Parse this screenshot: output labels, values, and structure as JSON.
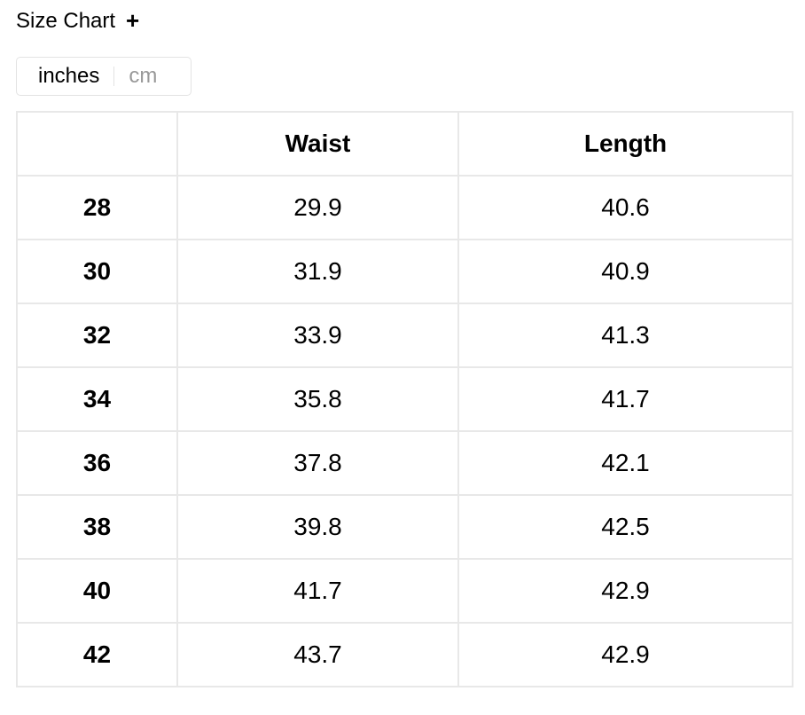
{
  "header": {
    "title": "Size Chart",
    "expand_icon": "plus-icon"
  },
  "unit_toggle": {
    "options": [
      "inches",
      "cm"
    ],
    "selected": "inches"
  },
  "table": {
    "columns": [
      "",
      "Waist",
      "Length"
    ],
    "rows": [
      [
        "28",
        "29.9",
        "40.6"
      ],
      [
        "30",
        "31.9",
        "40.9"
      ],
      [
        "32",
        "33.9",
        "41.3"
      ],
      [
        "34",
        "35.8",
        "41.7"
      ],
      [
        "36",
        "37.8",
        "42.1"
      ],
      [
        "38",
        "39.8",
        "42.5"
      ],
      [
        "40",
        "41.7",
        "42.9"
      ],
      [
        "42",
        "43.7",
        "42.9"
      ]
    ]
  }
}
